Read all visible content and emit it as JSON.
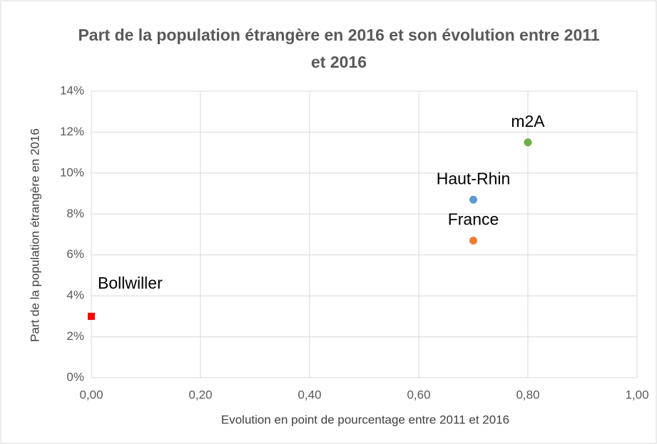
{
  "chart_data": {
    "type": "scatter",
    "title": "Part de la population étrangère en 2016 et son évolution entre 2011 et 2016",
    "x_label": "Evolution en point de pourcentage entre 2011 et 2016",
    "y_label": "Part de la population étrangère en 2016",
    "xlim": [
      0,
      1
    ],
    "ylim": [
      0,
      14
    ],
    "xticks": [
      {
        "value": 0,
        "label": "0,00"
      },
      {
        "value": 0.2,
        "label": "0,20"
      },
      {
        "value": 0.4,
        "label": "0,40"
      },
      {
        "value": 0.6,
        "label": "0,60"
      },
      {
        "value": 0.8,
        "label": "0,80"
      },
      {
        "value": 1,
        "label": "1,00"
      }
    ],
    "yticks": [
      {
        "value": 0,
        "label": "0%"
      },
      {
        "value": 2,
        "label": "2%"
      },
      {
        "value": 4,
        "label": "4%"
      },
      {
        "value": 6,
        "label": "6%"
      },
      {
        "value": 8,
        "label": "8%"
      },
      {
        "value": 10,
        "label": "10%"
      },
      {
        "value": 12,
        "label": "12%"
      },
      {
        "value": 14,
        "label": "14%"
      }
    ],
    "grid": true,
    "series": [
      {
        "name": "Bollwiller",
        "color": "#ff0000",
        "marker": "square",
        "x": [
          0
        ],
        "values": [
          3
        ]
      },
      {
        "name": "France",
        "color": "#ed7d31",
        "marker": "circle",
        "x": [
          0.7
        ],
        "values": [
          6.7
        ]
      },
      {
        "name": "Haut-Rhin",
        "color": "#5b9bd5",
        "marker": "circle",
        "x": [
          0.7
        ],
        "values": [
          8.7
        ]
      },
      {
        "name": "m2A",
        "color": "#70ad47",
        "marker": "circle",
        "x": [
          0.8
        ],
        "values": [
          11.5
        ]
      }
    ]
  }
}
